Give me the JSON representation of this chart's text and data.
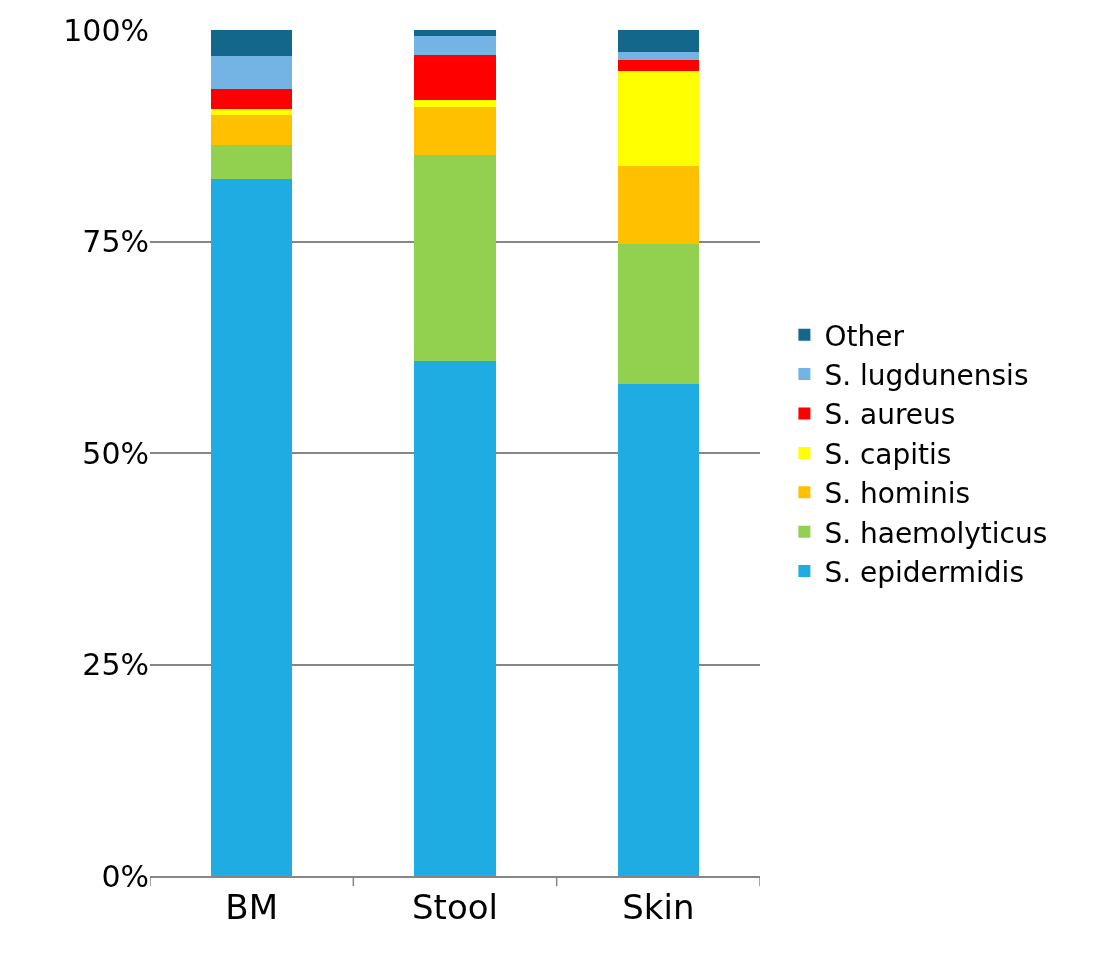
{
  "chart_data": {
    "type": "bar",
    "stacked": true,
    "categories": [
      "BM",
      "Stool",
      "Skin"
    ],
    "series": [
      {
        "name": "S. epidermidis",
        "color": "#1facE3",
        "values": [
          82.4,
          60.9,
          58.2
        ]
      },
      {
        "name": "S. haemolyticus",
        "color": "#92d050",
        "values": [
          4.0,
          24.3,
          16.5
        ]
      },
      {
        "name": "S. hominis",
        "color": "#ffc000",
        "values": [
          3.6,
          5.7,
          9.2
        ]
      },
      {
        "name": "S. capitis",
        "color": "#ffff00",
        "values": [
          0.7,
          0.8,
          11.3
        ]
      },
      {
        "name": "S. aureus",
        "color": "#ff0000",
        "values": [
          2.3,
          5.4,
          1.2
        ]
      },
      {
        "name": "S. lugdunensis",
        "color": "#74b4e4",
        "values": [
          3.9,
          2.2,
          1.0
        ]
      },
      {
        "name": "Other",
        "color": "#13678a",
        "values": [
          3.1,
          0.7,
          2.6
        ]
      }
    ],
    "ylim": [
      0,
      100
    ],
    "yticks": [
      {
        "value": 0,
        "label": "0%"
      },
      {
        "value": 25,
        "label": "25%"
      },
      {
        "value": 50,
        "label": "50%"
      },
      {
        "value": 75,
        "label": "75%"
      },
      {
        "value": 100,
        "label": "100%"
      }
    ],
    "grid": "y",
    "legend": "right"
  }
}
